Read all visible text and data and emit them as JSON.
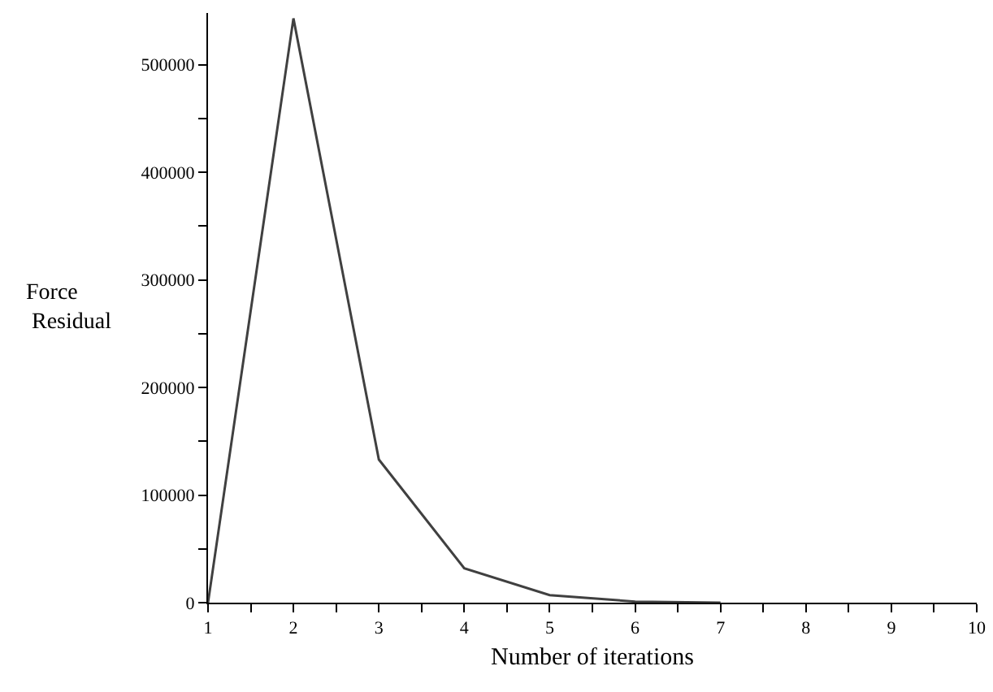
{
  "chart_data": {
    "type": "line",
    "xlabel": "Number of iterations",
    "ylabel": "Force\nResidual",
    "x": [
      1,
      2,
      3,
      4,
      5,
      6,
      7
    ],
    "series": [
      {
        "color": "#404040",
        "values": [
          0,
          543000,
          133000,
          32000,
          7000,
          1000,
          0
        ]
      }
    ],
    "xlim": [
      1,
      10
    ],
    "xticks": [
      1,
      {
        "value": 1.5,
        "label": null
      },
      2,
      {
        "value": 2.5,
        "label": null
      },
      3,
      {
        "value": 3.5,
        "label": null
      },
      4,
      {
        "value": 4.5,
        "label": null
      },
      5,
      {
        "value": 5.5,
        "label": null
      },
      6,
      {
        "value": 6.5,
        "label": null
      },
      7,
      {
        "value": 7.5,
        "label": null
      },
      8,
      {
        "value": 8.5,
        "label": null
      },
      9,
      {
        "value": 9.5,
        "label": null
      },
      10
    ],
    "ylim": [
      0,
      548000
    ],
    "yticks": [
      0,
      {
        "value": 50000,
        "label": null
      },
      100000,
      {
        "value": 150000,
        "label": null
      },
      200000,
      {
        "value": 250000,
        "label": null
      },
      300000,
      {
        "value": 350000,
        "label": null
      },
      400000,
      {
        "value": 450000,
        "label": null
      },
      500000
    ],
    "marker": "none",
    "line_style": "solid"
  }
}
